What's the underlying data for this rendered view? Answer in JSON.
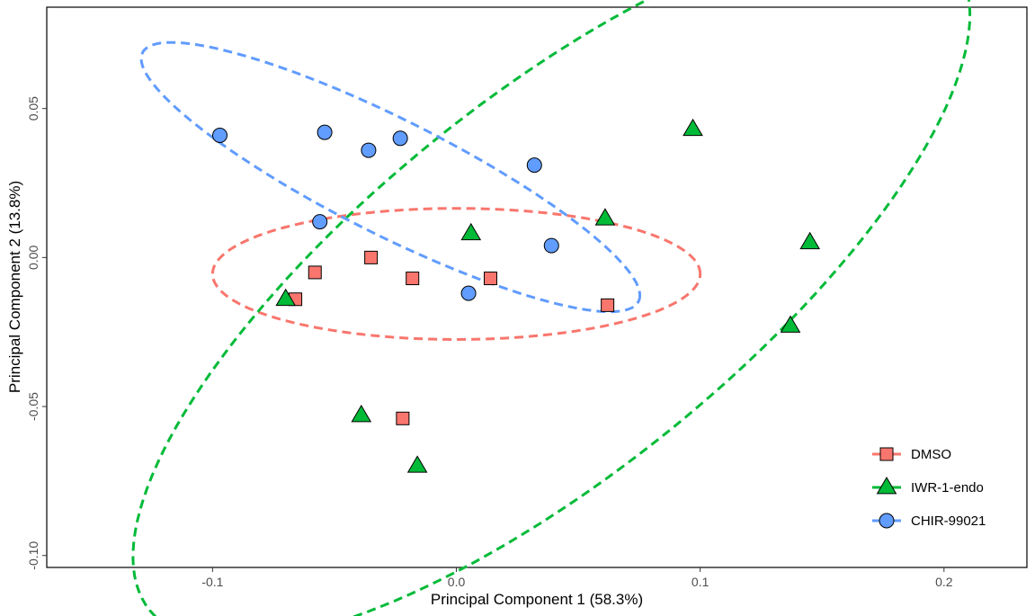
{
  "chart_data": {
    "type": "scatter",
    "xlabel": "Principal Component 1 (58.3%)",
    "ylabel": "Principal Component 2 (13.8%)",
    "xlim": [
      -0.168,
      0.234
    ],
    "ylim": [
      -0.104,
      0.084
    ],
    "x_ticks": [
      -0.1,
      0.0,
      0.1,
      0.2
    ],
    "x_tick_labels": [
      "-0.1",
      "0.0",
      "0.1",
      "0.2"
    ],
    "y_ticks": [
      -0.1,
      -0.05,
      0.0,
      0.05
    ],
    "y_tick_labels": [
      "-0.10",
      "-0.05",
      "0.00",
      "0.05"
    ],
    "grid": false,
    "legend_position": "bottom-right",
    "ellipses": "dashed confidence ellipse per group",
    "series": [
      {
        "name": "DMSO",
        "marker": "square",
        "color": "#F8766D",
        "x": [
          -0.066,
          -0.058,
          -0.035,
          -0.018,
          0.014,
          0.062,
          -0.022
        ],
        "y": [
          -0.014,
          -0.005,
          0.0,
          -0.007,
          -0.007,
          -0.016,
          -0.054
        ],
        "ellipse": {
          "cx": 0.0,
          "cy": -0.0055,
          "rx": 0.1,
          "ry": 0.022,
          "angle_deg": 0
        }
      },
      {
        "name": "IWR-1-endo",
        "marker": "triangle",
        "color": "#00BA38",
        "x": [
          -0.07,
          0.006,
          0.061,
          0.097,
          0.145,
          0.137,
          -0.039,
          -0.016
        ],
        "y": [
          -0.014,
          0.008,
          0.013,
          0.043,
          0.005,
          -0.023,
          -0.053,
          -0.07
        ],
        "ellipse": {
          "cx": 0.039,
          "cy": -0.0095,
          "rx": 0.198,
          "ry": 0.067,
          "angle_deg": 32
        }
      },
      {
        "name": "CHIR-99021",
        "marker": "circle",
        "color": "#619CFF",
        "x": [
          -0.097,
          -0.054,
          -0.036,
          -0.023,
          0.032,
          -0.056,
          0.039,
          0.005
        ],
        "y": [
          0.041,
          0.042,
          0.036,
          0.04,
          0.031,
          0.012,
          0.004,
          -0.012
        ],
        "ellipse": {
          "cx": -0.027,
          "cy": 0.027,
          "rx": 0.11,
          "ry": 0.02,
          "angle_deg": -22
        }
      }
    ]
  }
}
